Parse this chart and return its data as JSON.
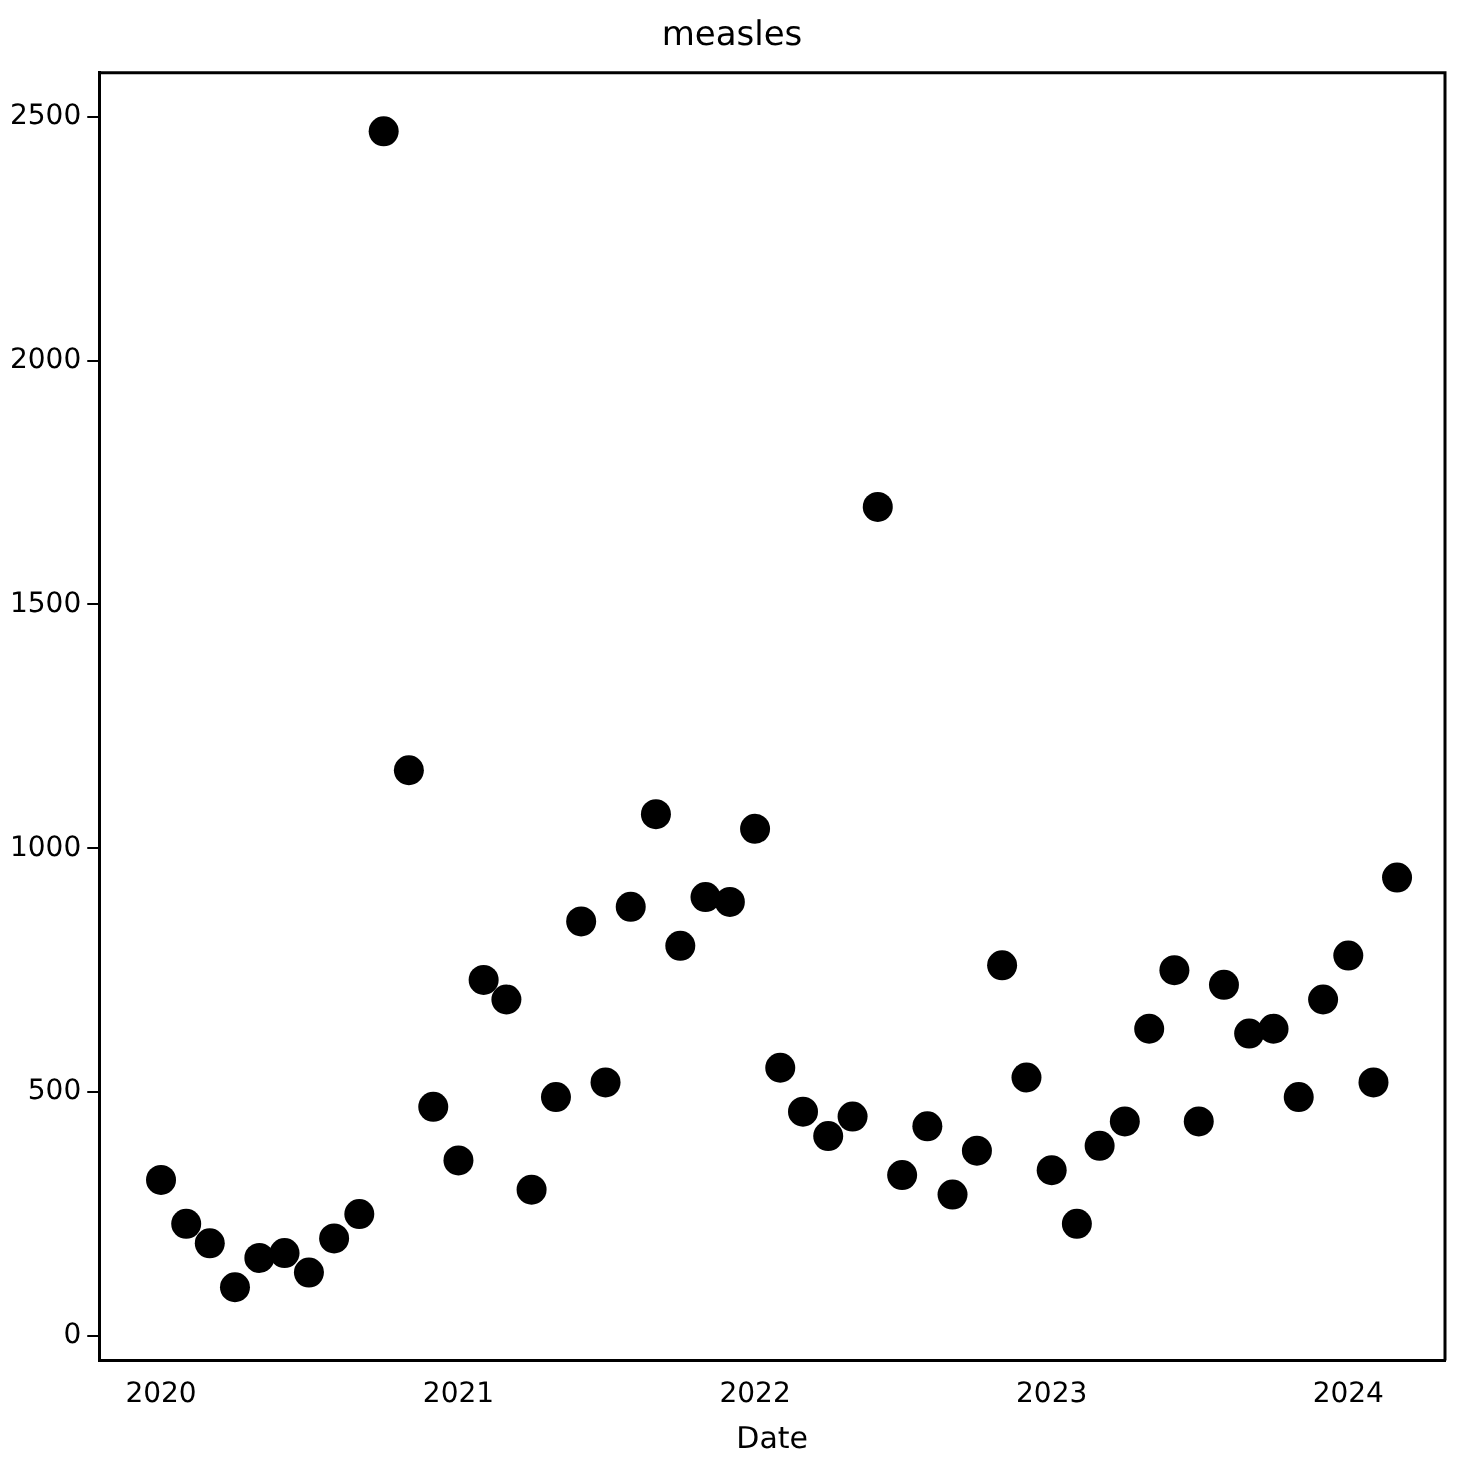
{
  "chart_data": {
    "type": "scatter",
    "title": "measles",
    "xlabel": "Date",
    "x": [
      "2020-01",
      "2020-02",
      "2020-03",
      "2020-04",
      "2020-05",
      "2020-06",
      "2020-07",
      "2020-08",
      "2020-09",
      "2020-10",
      "2020-11",
      "2020-12",
      "2021-01",
      "2021-02",
      "2021-03",
      "2021-04",
      "2021-05",
      "2021-06",
      "2021-07",
      "2021-08",
      "2021-09",
      "2021-10",
      "2021-11",
      "2021-12",
      "2022-01",
      "2022-02",
      "2022-03",
      "2022-04",
      "2022-05",
      "2022-06",
      "2022-07",
      "2022-08",
      "2022-09",
      "2022-10",
      "2022-11",
      "2022-12",
      "2023-01",
      "2023-02",
      "2023-03",
      "2023-04",
      "2023-05",
      "2023-06",
      "2023-07",
      "2023-08",
      "2023-09",
      "2023-10",
      "2023-11",
      "2023-12",
      "2024-01",
      "2024-02",
      "2024-03"
    ],
    "series": [
      {
        "color": "#000000",
        "values": [
          320,
          230,
          190,
          100,
          160,
          170,
          130,
          200,
          250,
          2470,
          1160,
          470,
          360,
          730,
          690,
          300,
          490,
          850,
          520,
          880,
          1070,
          800,
          900,
          890,
          1040,
          550,
          460,
          410,
          450,
          1700,
          330,
          430,
          290,
          380,
          760,
          530,
          340,
          230,
          390,
          440,
          630,
          750,
          440,
          720,
          620,
          630,
          490,
          690,
          780,
          520,
          940
        ]
      }
    ],
    "xlim": [
      "2019-10-17",
      "2024-04-29"
    ],
    "xticks": [
      "2020",
      "2021",
      "2022",
      "2023",
      "2024"
    ],
    "ylim": [
      -50,
      2590
    ],
    "yticks": [
      0,
      500,
      1000,
      1500,
      2000,
      2500
    ],
    "grid": false,
    "legend": false,
    "marker": "circle"
  }
}
